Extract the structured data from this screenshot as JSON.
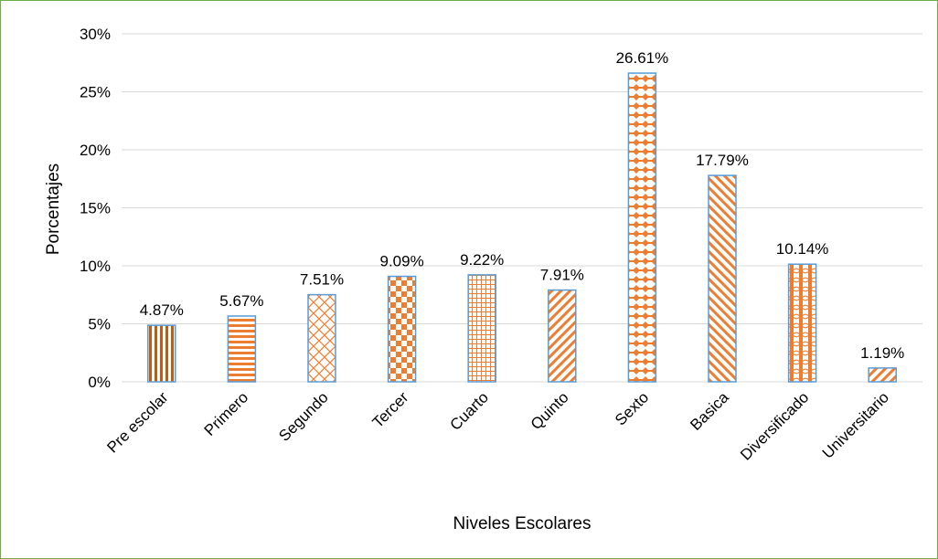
{
  "chart_data": {
    "type": "bar",
    "title": "",
    "xlabel": "Niveles Escolares",
    "ylabel": "Porcentajes",
    "ylim": [
      0,
      30
    ],
    "yticks": [
      0,
      5,
      10,
      15,
      20,
      25,
      30
    ],
    "ytick_labels": [
      "0%",
      "5%",
      "10%",
      "15%",
      "20%",
      "25%",
      "30%"
    ],
    "grid": true,
    "legend": "none",
    "categories": [
      "Pre escolar",
      "Primero",
      "Segundo",
      "Tercer",
      "Cuarto",
      "Quinto",
      "Sexto",
      "Basica",
      "Diversificado",
      "Universitario"
    ],
    "values": [
      4.87,
      5.67,
      7.51,
      9.09,
      9.22,
      7.91,
      26.61,
      17.79,
      10.14,
      1.19
    ],
    "data_labels": [
      "4.87%",
      "5.67%",
      "7.51%",
      "9.09%",
      "9.22%",
      "7.91%",
      "26.61%",
      "17.79%",
      "10.14%",
      "1.19%"
    ],
    "patterns": [
      "vertical-stripes",
      "horizontal-stripes",
      "diagonal-cross",
      "checkerboard",
      "grid",
      "forward-diagonal",
      "diamonds",
      "backward-diagonal",
      "weave",
      "forward-diagonal"
    ],
    "colors": {
      "fill": "#ed7d31",
      "outline": "#5b9bd5",
      "grid": "#d9d9d9",
      "frame": "#70ad47",
      "dark_stripe": "#c55a11"
    }
  }
}
